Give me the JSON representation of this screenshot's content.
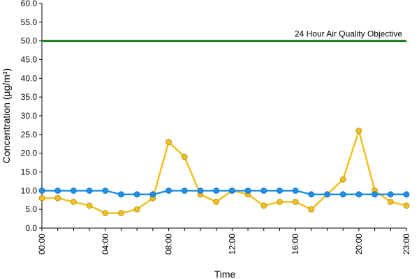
{
  "chart_data": {
    "type": "line",
    "xlabel": "Time",
    "ylabel": "Concentration (µg/m³)",
    "ylim": [
      0,
      60
    ],
    "y_ticks": [
      "0.0",
      "5.0",
      "10.0",
      "15.0",
      "20.0",
      "25.0",
      "30.0",
      "35.0",
      "40.0",
      "45.0",
      "50.0",
      "55.0",
      "60.0"
    ],
    "x_tick_labels": [
      "00:00",
      "04:00",
      "08:00",
      "12:00",
      "16:00",
      "20:00",
      "23:00"
    ],
    "x_tick_hours": [
      0,
      4,
      8,
      12,
      16,
      20,
      23
    ],
    "x": [
      0,
      1,
      2,
      3,
      4,
      5,
      6,
      7,
      8,
      9,
      10,
      11,
      12,
      13,
      14,
      15,
      16,
      17,
      18,
      19,
      20,
      21,
      22,
      23
    ],
    "grid": false,
    "reference_line": {
      "label": "24 Hour Air Quality Objective",
      "value": 50,
      "color": "#1e7b1e"
    },
    "series": [
      {
        "color": "#f0c020",
        "values": [
          8,
          8,
          7,
          6,
          4,
          4,
          5,
          8,
          23,
          19,
          9,
          7,
          10,
          9,
          6,
          7,
          7,
          5,
          9,
          13,
          26,
          10,
          7,
          6
        ]
      },
      {
        "color": "#1e90e8",
        "values": [
          10,
          10,
          10,
          10,
          10,
          9,
          9,
          9,
          10,
          10,
          10,
          10,
          10,
          10,
          10,
          10,
          10,
          9,
          9,
          9,
          9,
          9,
          9,
          9
        ]
      }
    ]
  }
}
